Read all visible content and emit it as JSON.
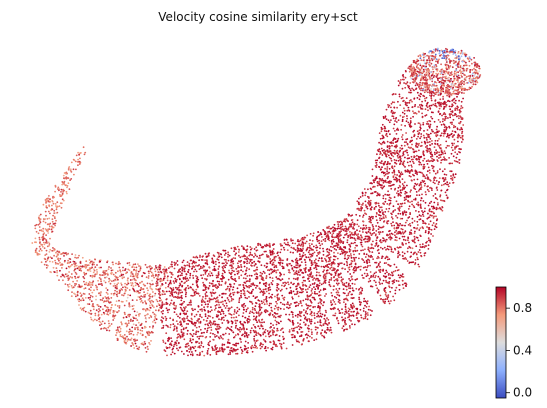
{
  "chart_data": {
    "type": "scatter",
    "title": "Velocity cosine similarity ery+sct",
    "xlabel": "",
    "ylabel": "",
    "axes_visible": false,
    "colormap": "coolwarm",
    "colorbar": {
      "min": -0.05,
      "max": 1.0,
      "ticks": [
        0.0,
        0.4,
        0.8
      ],
      "tick_labels": [
        "0.0",
        "0.4",
        "0.8"
      ],
      "placement": "bottom-right"
    },
    "value_distribution": {
      "dominant_value": 0.95,
      "lower_values_region": "left arm and upper tip",
      "min_observed": -0.05
    },
    "colors": {
      "low": "#3b4cc0",
      "mid": "#dddddd",
      "high": "#b40426"
    }
  }
}
